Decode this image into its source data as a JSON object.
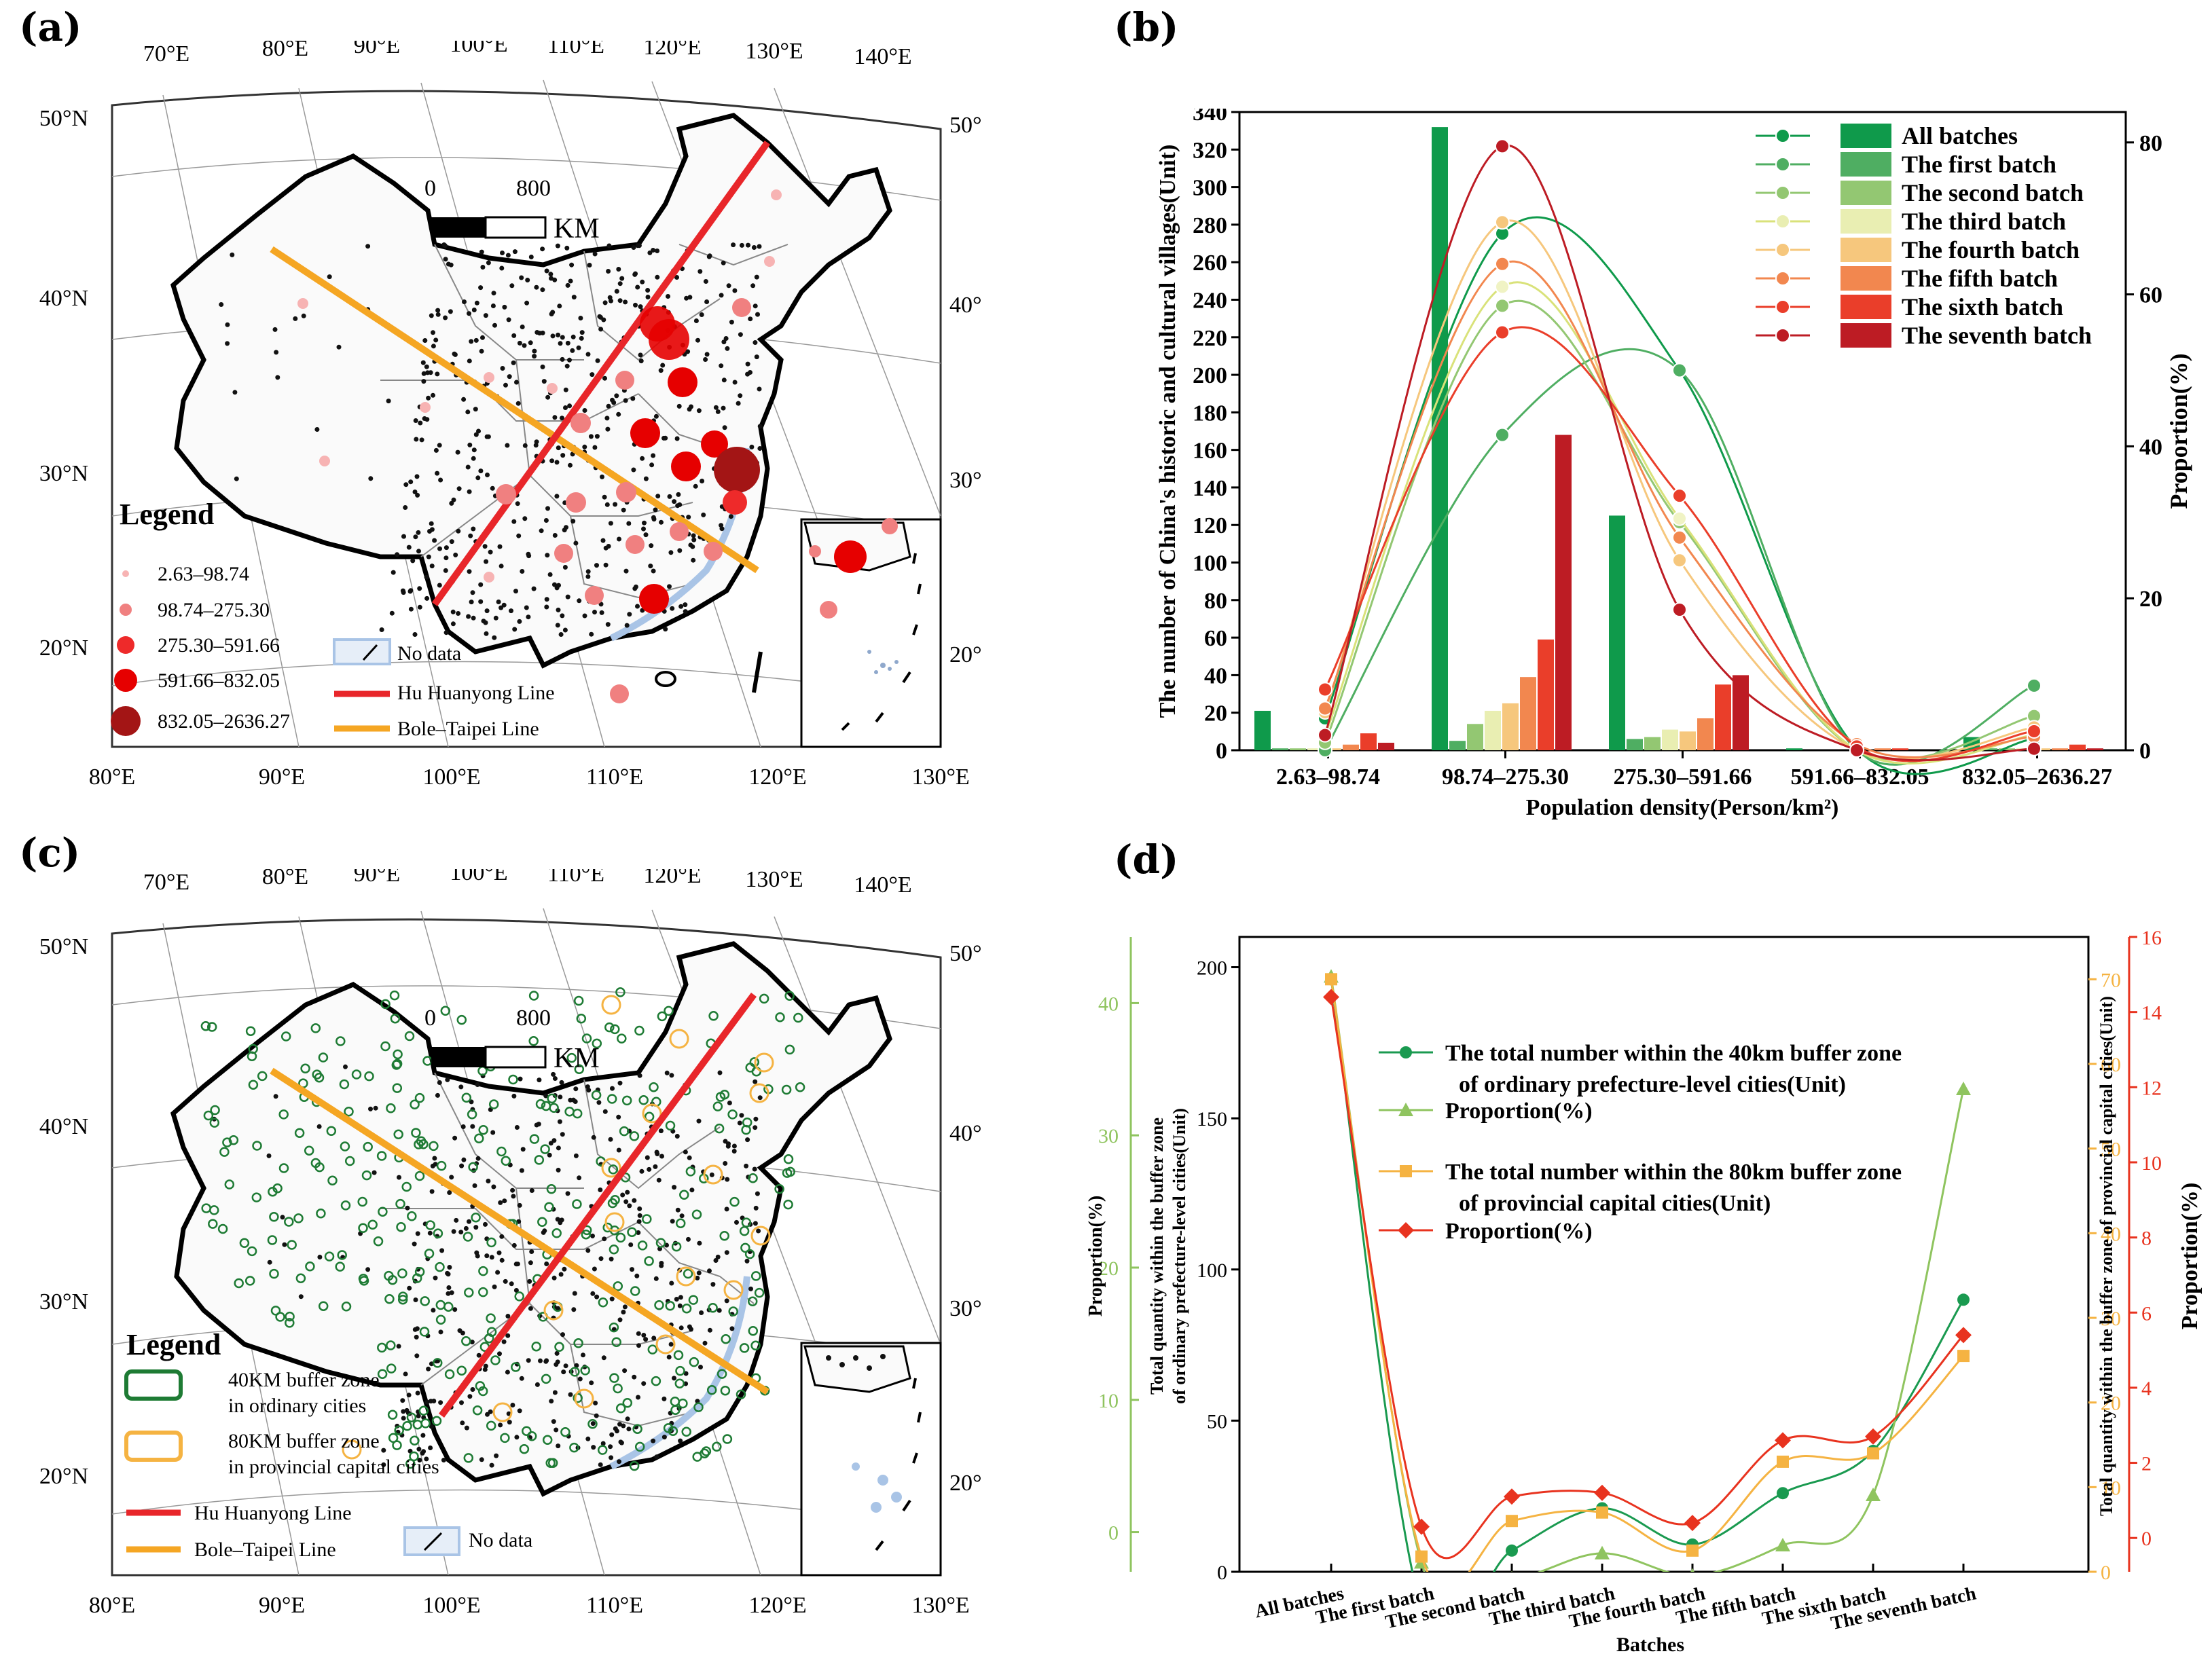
{
  "panels": {
    "a": {
      "letter": "(a)",
      "top_lon": [
        "70°E",
        "80°E",
        "90°E",
        "100°E",
        "110°E",
        "120°E",
        "130°E",
        "140°E"
      ],
      "bottom_lon": [
        "80°E",
        "90°E",
        "100°E",
        "110°E",
        "120°E",
        "130°E"
      ],
      "lat": [
        "50°N",
        "40°N",
        "30°N",
        "20°N"
      ],
      "scale_zero": "0",
      "scale_value": "800",
      "scale_unit": "KM",
      "legend_title": "Legend",
      "legend_items": [
        "2.63–98.74",
        "98.74–275.30",
        "275.30–591.66",
        "591.66–832.05",
        "832.05–2636.27"
      ],
      "legend_colors": [
        "#f7b3b3",
        "#f08080",
        "#ee2a2a",
        "#e60000",
        "#a31515"
      ],
      "no_data": "No data",
      "hu_line": "Hu Huanyong Line",
      "bole_line": "Bole–Taipei Line",
      "hu_color": "#e8262a",
      "bole_color": "#f5a623"
    },
    "c": {
      "letter": "(c)",
      "top_lon": [
        "70°E",
        "80°E",
        "90°E",
        "100°E",
        "110°E",
        "120°E",
        "130°E",
        "140°E"
      ],
      "bottom_lon": [
        "80°E",
        "90°E",
        "100°E",
        "110°E",
        "120°E",
        "130°E"
      ],
      "lat": [
        "50°N",
        "40°N",
        "30°N",
        "20°N"
      ],
      "scale_zero": "0",
      "scale_value": "800",
      "scale_unit": "KM",
      "legend_title": "Legend",
      "buffer40_l1": "40KM buffer zone",
      "buffer40_l2": "in ordinary cities",
      "buffer80_l1": "80KM buffer zone",
      "buffer80_l2": "in provincial capital cities",
      "hu_line": "Hu Huanyong Line",
      "bole_line": "Bole–Taipei Line",
      "no_data": "No data",
      "green_color": "#1e7b34",
      "orange_color": "#f5b342"
    },
    "b": {
      "letter": "(b)",
      "ylabel": "The number of China's historic and cultural villages(Unit)",
      "y2label": "Proportion(%)",
      "xlabel": "Population density(Person/km²)"
    },
    "d": {
      "letter": "(d)",
      "xlabel": "Batches",
      "ylabel_inner": "Total quantity within the buffer zone",
      "ylabel_inner2": "of ordinary prefecture-level cities(Unit)",
      "ylabel_green": "Proportion(%)",
      "ylabel_orange": "Total quantity within the buffer zone of provincial capital cities(Unit)",
      "ylabel_red": "Proportion(%)"
    }
  },
  "chart_data": [
    {
      "type": "bar",
      "panel": "b",
      "categories": [
        "2.63–98.74",
        "98.74–275.30",
        "275.30–591.66",
        "591.66–832.05",
        "832.05–2636.27"
      ],
      "ylim": [
        0,
        340
      ],
      "y_ticks": [
        0,
        20,
        40,
        60,
        80,
        100,
        120,
        140,
        160,
        180,
        200,
        220,
        240,
        260,
        280,
        300,
        320,
        340
      ],
      "y2lim": [
        0,
        84
      ],
      "y2_ticks": [
        0,
        20,
        40,
        60,
        80
      ],
      "legend_placement": "top-right",
      "series": [
        {
          "name": "All batches",
          "color": "#0f9a4b",
          "values": [
            21,
            332,
            125,
            1,
            7
          ],
          "proportion": [
            4.2,
            68.0,
            50.0,
            0.2,
            1.5
          ]
        },
        {
          "name": "The first batch",
          "color": "#4fae62",
          "values": [
            1,
            5,
            6,
            0,
            1
          ],
          "proportion": [
            0,
            41.5,
            50.0,
            0,
            8.5
          ]
        },
        {
          "name": "The second batch",
          "color": "#93c772",
          "values": [
            1,
            14,
            7,
            0,
            1
          ],
          "proportion": [
            1.0,
            58.5,
            30.0,
            0,
            4.5
          ]
        },
        {
          "name": "The third batch",
          "color": "#e9eeb2",
          "values": [
            1,
            21,
            11,
            0,
            1
          ],
          "proportion": [
            2.0,
            61.0,
            30.5,
            0,
            2.0
          ]
        },
        {
          "name": "The fourth batch",
          "color": "#f6c77d",
          "values": [
            1,
            25,
            10,
            0,
            1
          ],
          "proportion": [
            5.0,
            69.5,
            25.0,
            0,
            3.0
          ]
        },
        {
          "name": "The fifth batch",
          "color": "#f2874f",
          "values": [
            3,
            39,
            17,
            1,
            1
          ],
          "proportion": [
            5.5,
            64.0,
            28.0,
            0.8,
            1.8
          ]
        },
        {
          "name": "The sixth batch",
          "color": "#ea3e2a",
          "values": [
            9,
            59,
            35,
            1,
            3
          ],
          "proportion": [
            8.0,
            55.0,
            33.5,
            0.5,
            2.5
          ]
        },
        {
          "name": "The seventh batch",
          "color": "#bd1c24",
          "values": [
            4,
            168,
            40,
            0,
            1
          ],
          "proportion": [
            2.0,
            79.5,
            18.5,
            0,
            0.2
          ]
        }
      ]
    },
    {
      "type": "line",
      "panel": "d",
      "categories": [
        "All batches",
        "The first batch",
        "The second batch",
        "The third batch",
        "The fourth batch",
        "The fifth batch",
        "The sixth batch",
        "The seventh batch"
      ],
      "left_axis": {
        "lim": [
          0,
          210
        ],
        "ticks": [
          0,
          50,
          100,
          150,
          200
        ]
      },
      "green_axis": {
        "lim": [
          -3,
          45
        ],
        "ticks": [
          0,
          10,
          20,
          30,
          40
        ]
      },
      "orange_axis": {
        "lim": [
          0,
          75
        ],
        "ticks": [
          0,
          10,
          20,
          30,
          40,
          50,
          60,
          70
        ]
      },
      "red_axis": {
        "lim": [
          -0.9,
          16
        ],
        "ticks": [
          0,
          2,
          4,
          6,
          8,
          10,
          12,
          14,
          16
        ]
      },
      "series": [
        {
          "name": "The total number within the 40km buffer zone of ordinary prefecture-level cities(Unit)",
          "name_l1": "The total number within the 40km buffer zone",
          "name_l2": "of ordinary prefecture-level cities(Unit)",
          "axis": "left_axis",
          "color": "#1a9a50",
          "marker": "circle",
          "values": [
            196,
            -12,
            7,
            21,
            9,
            26,
            40,
            90
          ]
        },
        {
          "name": "Proportion(%)",
          "axis": "green_axis",
          "color": "#8fc45f",
          "marker": "triangle",
          "values": [
            42,
            -2.3,
            -3.5,
            -1.6,
            -3.3,
            -1.0,
            2.8,
            33.5
          ]
        },
        {
          "name": "The total number within the 80km buffer zone of provincial capital cities(Unit)",
          "name_l1": "The total number within the 80km buffer zone",
          "name_l2": "of provincial capital cities(Unit)",
          "axis": "orange_axis",
          "color": "#f5b342",
          "marker": "square",
          "values": [
            70,
            1.8,
            6,
            7,
            2.5,
            13,
            14,
            25.5
          ]
        },
        {
          "name": "Proportion(%)",
          "axis": "red_axis",
          "color": "#e8331f",
          "marker": "diamond",
          "values": [
            14.4,
            0.3,
            1.1,
            1.2,
            0.4,
            2.6,
            2.7,
            5.4
          ]
        }
      ]
    }
  ]
}
